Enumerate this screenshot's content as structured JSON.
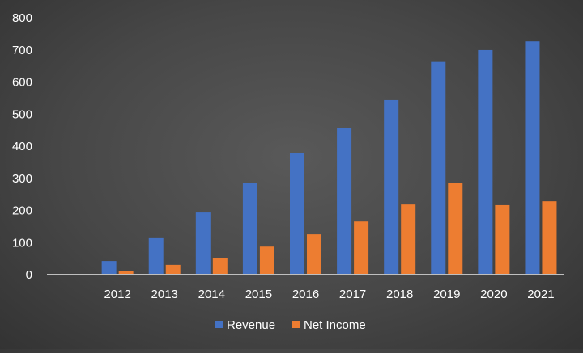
{
  "chart_data": {
    "type": "bar",
    "categories": [
      "",
      "2012",
      "2013",
      "2014",
      "2015",
      "2016",
      "2017",
      "2018",
      "2019",
      "2020",
      "2021"
    ],
    "series": [
      {
        "name": "Revenue",
        "color": "#4472C4",
        "values": [
          null,
          40,
          111,
          191,
          284,
          377,
          453,
          541,
          660,
          697,
          724
        ]
      },
      {
        "name": "Net Income",
        "color": "#ED7D31",
        "values": [
          null,
          10,
          28,
          48,
          85,
          123,
          163,
          216,
          284,
          214,
          226
        ]
      }
    ],
    "title": "",
    "xlabel": "",
    "ylabel": "",
    "ylim": [
      0,
      800
    ],
    "yticks": [
      "0",
      "100",
      "200",
      "300",
      "400",
      "500",
      "600",
      "700",
      "800"
    ],
    "grid": false,
    "legend_position": "bottom"
  }
}
